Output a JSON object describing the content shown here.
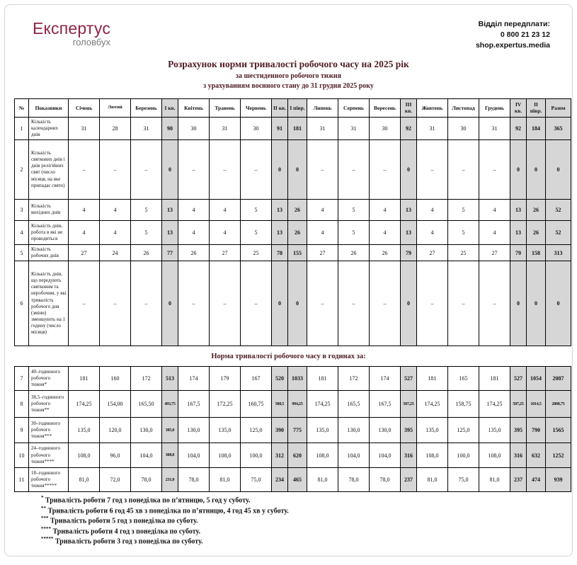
{
  "logo": {
    "line1": "Експертус",
    "line2": "головбух"
  },
  "contact": {
    "line1": "Відділ передплати:",
    "phone": "0 800 21 23 12",
    "site": "shop.expertus.media"
  },
  "titles": {
    "main": "Розрахунок норми тривалості робочого часу на 2025 рік",
    "sub1": "за шестиденного робочого тижня",
    "sub2": "з урахуванням воєнного стану до 31 грудня 2025 року",
    "section": "Норма тривалості робочого часу в годинах за:"
  },
  "colors": {
    "accent": "#4e1b22",
    "logo": "#8e2444",
    "shaded_column": "#d6d6d6"
  },
  "table": {
    "headers": [
      "№",
      "Показники",
      "Січень",
      "Лютий",
      "Березень",
      "І кв.",
      "Квітень",
      "Травень",
      "Червень",
      "ІІ кв.",
      "І півр.",
      "Липень",
      "Серпень",
      "Вересень",
      "ІІІ кв.",
      "Жовтень",
      "Листопад",
      "Грудень",
      "IV кв.",
      "ІІ півр.",
      "Разом"
    ],
    "shaded_columns": [
      5,
      9,
      10,
      14,
      18,
      19,
      20
    ],
    "narrow_columns": [
      5,
      9,
      10,
      14,
      18,
      19,
      20
    ],
    "rows1": [
      {
        "num": "1",
        "label": "Кількість календарних днів",
        "values": [
          "31",
          "28",
          "31",
          "90",
          "30",
          "31",
          "30",
          "91",
          "181",
          "31",
          "31",
          "30",
          "92",
          "31",
          "30",
          "31",
          "92",
          "184",
          "365"
        ]
      },
      {
        "num": "2",
        "label": "Кількість святкових днів і днів релігійних свят (число місяця, на яке припадає свято)",
        "values": [
          "–",
          "–",
          "–",
          "0",
          "–",
          "–",
          "–",
          "0",
          "0",
          "–",
          "–",
          "–",
          "0",
          "–",
          "–",
          "–",
          "0",
          "0",
          "0"
        ]
      },
      {
        "num": "3",
        "label": "Кількість вихідних днів",
        "values": [
          "4",
          "4",
          "5",
          "13",
          "4",
          "4",
          "5",
          "13",
          "26",
          "4",
          "5",
          "4",
          "13",
          "4",
          "5",
          "4",
          "13",
          "26",
          "52"
        ]
      },
      {
        "num": "4",
        "label": "Кількість днів, робота в які не проводиться",
        "values": [
          "4",
          "4",
          "5",
          "13",
          "4",
          "4",
          "5",
          "13",
          "26",
          "4",
          "5",
          "4",
          "13",
          "4",
          "5",
          "4",
          "13",
          "26",
          "52"
        ]
      },
      {
        "num": "5",
        "label": "Кількість робочих днів",
        "values": [
          "27",
          "24",
          "26",
          "77",
          "26",
          "27",
          "25",
          "78",
          "155",
          "27",
          "26",
          "26",
          "79",
          "27",
          "25",
          "27",
          "79",
          "158",
          "313"
        ]
      },
      {
        "num": "6",
        "label": "Кількість днів, що передують святковим та неробочим, у які тривалість робочого дня (зміни) зменшують на 1 годину (число місяця)",
        "values": [
          "–",
          "–",
          "–",
          "0",
          "–",
          "–",
          "–",
          "0",
          "0",
          "–",
          "–",
          "–",
          "0",
          "–",
          "–",
          "–",
          "0",
          "0",
          "0"
        ]
      }
    ],
    "rows2": [
      {
        "num": "7",
        "label": "40–годинного робочого тижня*",
        "values": [
          "181",
          "160",
          "172",
          "513",
          "174",
          "179",
          "167",
          "520",
          "1033",
          "181",
          "172",
          "174",
          "527",
          "181",
          "165",
          "181",
          "527",
          "1054",
          "2087"
        ]
      },
      {
        "num": "8",
        "label": "38,5–годинного робочого тижня**",
        "values": [
          "174,25",
          "154,00",
          "165,50",
          "493,75",
          "167,5",
          "172,25",
          "160,75",
          "500,5",
          "994,25",
          "174,25",
          "165,5",
          "167,5",
          "507,25",
          "174,25",
          "158,75",
          "174,25",
          "507,25",
          "1014,5",
          "2008,75"
        ]
      },
      {
        "num": "9",
        "label": "30–годинного робочого тижня***",
        "values": [
          "135,0",
          "120,0",
          "130,0",
          "385,0",
          "130,0",
          "135,0",
          "125,0",
          "390",
          "775",
          "135,0",
          "130,0",
          "130,0",
          "395",
          "135,0",
          "125,0",
          "135,0",
          "395",
          "790",
          "1565"
        ]
      },
      {
        "num": "10",
        "label": "24–годинного робочого тижня****",
        "values": [
          "108,0",
          "96,0",
          "104,0",
          "308,0",
          "104,0",
          "108,0",
          "100,0",
          "312",
          "620",
          "108,0",
          "104,0",
          "104,0",
          "316",
          "108,0",
          "100,0",
          "108,0",
          "316",
          "632",
          "1252"
        ]
      },
      {
        "num": "11",
        "label": "18–годинного робочого тижня*****",
        "values": [
          "81,0",
          "72,0",
          "78,0",
          "231,0",
          "78,0",
          "81,0",
          "75,0",
          "234",
          "465",
          "81,0",
          "78,0",
          "78,0",
          "237",
          "81,0",
          "75,0",
          "81,0",
          "237",
          "474",
          "939"
        ]
      }
    ]
  },
  "footnotes": [
    {
      "stars": "*",
      "text": " Тривалість роботи 7 год з понеділка по п’ятницю, 5 год у суботу."
    },
    {
      "stars": "**",
      "text": " Тривалість роботи 6 год 45 хв з понеділка по п’ятницю, 4 год 45 хв у суботу."
    },
    {
      "stars": "***",
      "text": " Тривалість роботи 5 год з понеділка по суботу."
    },
    {
      "stars": "****",
      "text": " Тривалість роботи 4 год з понеділка по суботу."
    },
    {
      "stars": "*****",
      "text": " Тривалість роботи 3 год з понеділка по суботу."
    }
  ]
}
